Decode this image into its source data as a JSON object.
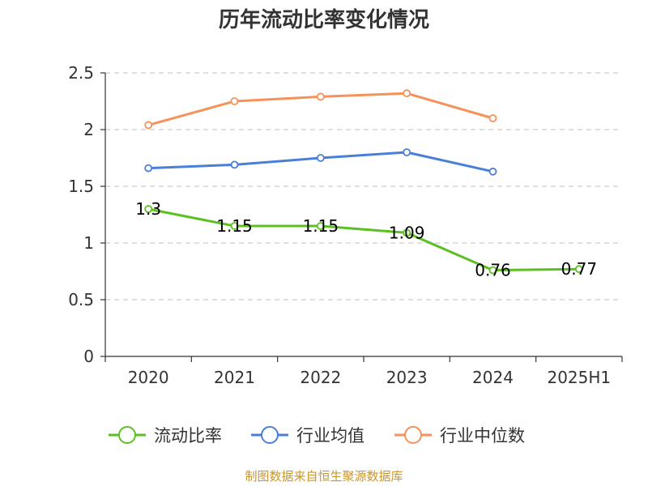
{
  "source_note": "制图数据来自恒生聚源数据库",
  "colors": {
    "source_text": "#c8962a",
    "grid": "#cccccc",
    "axis": "#333333"
  },
  "chart_data": {
    "type": "line",
    "title": "历年流动比率变化情况",
    "xlabel": "",
    "ylabel": "",
    "categories": [
      "2020",
      "2021",
      "2022",
      "2023",
      "2024",
      "2025H1"
    ],
    "ylim": [
      0,
      2.5
    ],
    "yticks": [
      0,
      0.5,
      1,
      1.5,
      2,
      2.5
    ],
    "ytick_labels": [
      "0",
      "0.5",
      "1",
      "1.5",
      "2",
      "2.5"
    ],
    "grid": true,
    "legend_position": "bottom",
    "series": [
      {
        "name": "流动比率",
        "color": "#5cc022",
        "values": [
          1.3,
          1.15,
          1.15,
          1.09,
          0.76,
          0.77
        ],
        "data_labels": [
          "1.3",
          "1.15",
          "1.15",
          "1.09",
          "0.76",
          "0.77"
        ]
      },
      {
        "name": "行业均值",
        "color": "#4a7fd8",
        "values": [
          1.66,
          1.69,
          1.75,
          1.8,
          1.63,
          null
        ]
      },
      {
        "name": "行业中位数",
        "color": "#f5925a",
        "values": [
          2.04,
          2.25,
          2.29,
          2.32,
          2.1,
          null
        ]
      }
    ]
  }
}
